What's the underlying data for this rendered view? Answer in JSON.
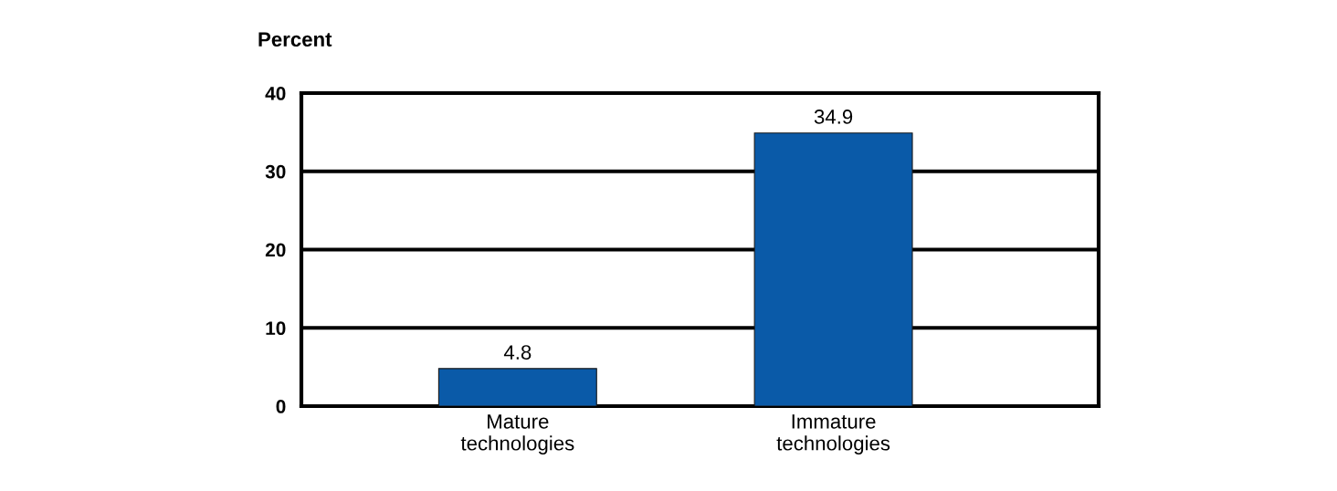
{
  "chart_data": {
    "type": "bar",
    "ylabel": "Percent",
    "categories": [
      "Mature\ntechnologies",
      "Immature\ntechnologies"
    ],
    "values": [
      4.8,
      34.9
    ],
    "color": "#0a5aa8",
    "ylim": [
      0,
      40
    ],
    "yticks": [
      0,
      10,
      20,
      30,
      40
    ],
    "grid": "y",
    "data_labels": true
  }
}
